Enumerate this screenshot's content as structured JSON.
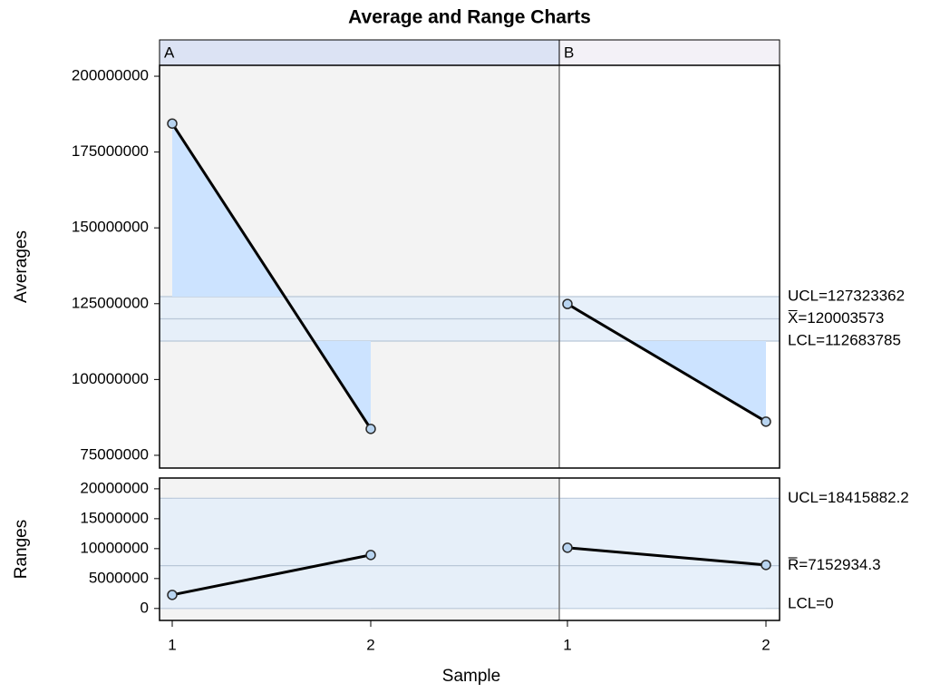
{
  "chart_data": {
    "type": "control",
    "title": "Average and Range Charts",
    "xlabel": "Sample",
    "phases": [
      "A",
      "B"
    ],
    "x": [
      1,
      2
    ],
    "line_color": "#000000",
    "marker_color": "#b8d4f0",
    "band_color": "#e3edf9",
    "excursion_color": "#cce3ff",
    "panels": [
      {
        "ylabel": "Averages",
        "ylim": [
          70800000,
          203600000
        ],
        "yticks": [
          75000000,
          100000000,
          125000000,
          150000000,
          175000000,
          200000000
        ],
        "limits": [
          {
            "value": 127323362,
            "label": "UCL=127323362"
          },
          {
            "value": 120003573,
            "label": "X̅=120003573"
          },
          {
            "value": 112683785,
            "label": "LCL=112683785"
          }
        ],
        "values": [
          [
            184400000,
            83700000
          ],
          [
            124900000,
            86100000
          ]
        ]
      },
      {
        "ylabel": "Ranges",
        "ylim": [
          -2000000,
          21800000
        ],
        "yticks": [
          0,
          5000000,
          10000000,
          15000000,
          20000000
        ],
        "limits": [
          {
            "value": 18415882.2,
            "label": "UCL=18415882.2"
          },
          {
            "value": 7152934.3,
            "label": "R̅=7152934.3"
          },
          {
            "value": 0,
            "label": "LCL=0"
          }
        ],
        "values": [
          [
            2270000,
            8940000
          ],
          [
            10150000,
            7270000
          ]
        ]
      }
    ]
  }
}
